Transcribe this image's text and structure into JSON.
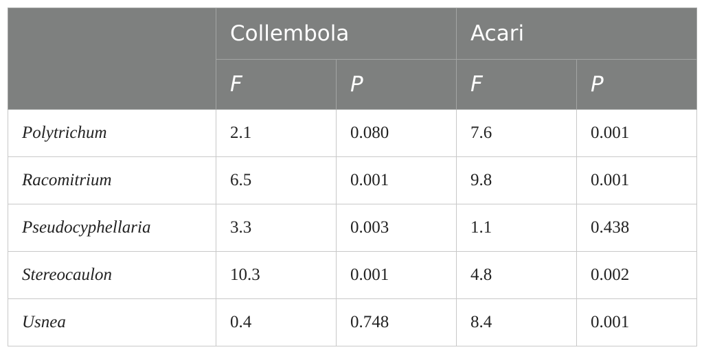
{
  "table": {
    "corner": "",
    "groups": [
      "Collembola",
      "Acari"
    ],
    "subheaders": [
      "F",
      "P",
      "F",
      "P"
    ],
    "rows": [
      {
        "taxon": "Polytrichum",
        "values": [
          "2.1",
          "0.080",
          "7.6",
          "0.001"
        ]
      },
      {
        "taxon": "Racomitrium",
        "values": [
          "6.5",
          "0.001",
          "9.8",
          "0.001"
        ]
      },
      {
        "taxon": "Pseudocyphellaria",
        "values": [
          "3.3",
          "0.003",
          "1.1",
          "0.438"
        ]
      },
      {
        "taxon": "Stereocaulon",
        "values": [
          "10.3",
          "0.001",
          "4.8",
          "0.002"
        ]
      },
      {
        "taxon": "Usnea",
        "values": [
          "0.4",
          "0.748",
          "8.4",
          "0.001"
        ]
      }
    ]
  },
  "colors": {
    "header_background": "#7e807f",
    "header_text": "#ffffff",
    "grid_line": "#c8c8c8",
    "body_text": "#222222"
  }
}
